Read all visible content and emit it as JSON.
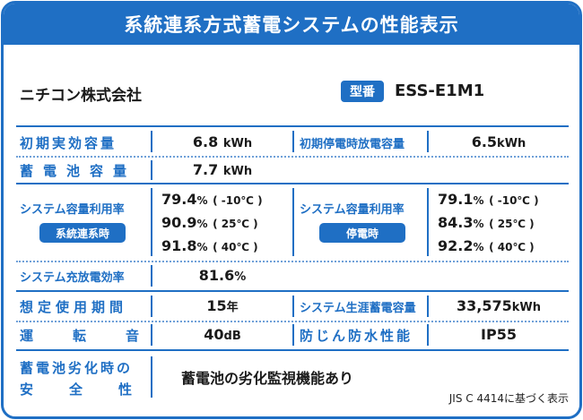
{
  "title": "系統連系方式蓄電システムの性能表示",
  "maker": "ニチコン株式会社",
  "model": {
    "badge": "型番",
    "value": "ESS-E1M1"
  },
  "rows": {
    "initial_capacity": {
      "label": "初期実効容量",
      "value": "6.8",
      "unit": "kWh"
    },
    "initial_outage_capacity": {
      "label": "初期停電時放電容量",
      "value": "6.5",
      "unit": "kWh"
    },
    "battery_capacity": {
      "label": "蓄電池容量",
      "value": "7.7",
      "unit": "kWh"
    },
    "utilization_grid": {
      "label": "システム容量利用率",
      "tag": "系統連系時",
      "lines": [
        {
          "value": "79.4",
          "unit": "%",
          "temp": "( -10℃ )"
        },
        {
          "value": "90.9",
          "unit": "%",
          "temp": "( 25℃ )"
        },
        {
          "value": "91.8",
          "unit": "%",
          "temp": "( 40℃ )"
        }
      ]
    },
    "utilization_outage": {
      "label": "システム容量利用率",
      "tag": "停電時",
      "lines": [
        {
          "value": "79.1",
          "unit": "%",
          "temp": "( -10℃ )"
        },
        {
          "value": "84.3",
          "unit": "%",
          "temp": "( 25℃ )"
        },
        {
          "value": "92.2",
          "unit": "%",
          "temp": "( 40℃ )"
        }
      ]
    },
    "charge_efficiency": {
      "label": "システム充放電効率",
      "value": "81.6",
      "unit": "%"
    },
    "expected_life": {
      "label": "想定使用期間",
      "value": "15",
      "unit": "年"
    },
    "lifetime_storage": {
      "label": "システム生涯蓄電容量",
      "value": "33,575",
      "unit": "kWh"
    },
    "noise": {
      "label": "運転音",
      "value": "40",
      "unit": "dB"
    },
    "waterproof": {
      "label": "防じん防水性能",
      "value": "IP55"
    },
    "degradation": {
      "label_line1": "蓄電池劣化時の",
      "label_line2": "安全性",
      "value": "蓄電池の劣化監視機能あり"
    }
  },
  "note": "JIS C 4414に基づく表示"
}
